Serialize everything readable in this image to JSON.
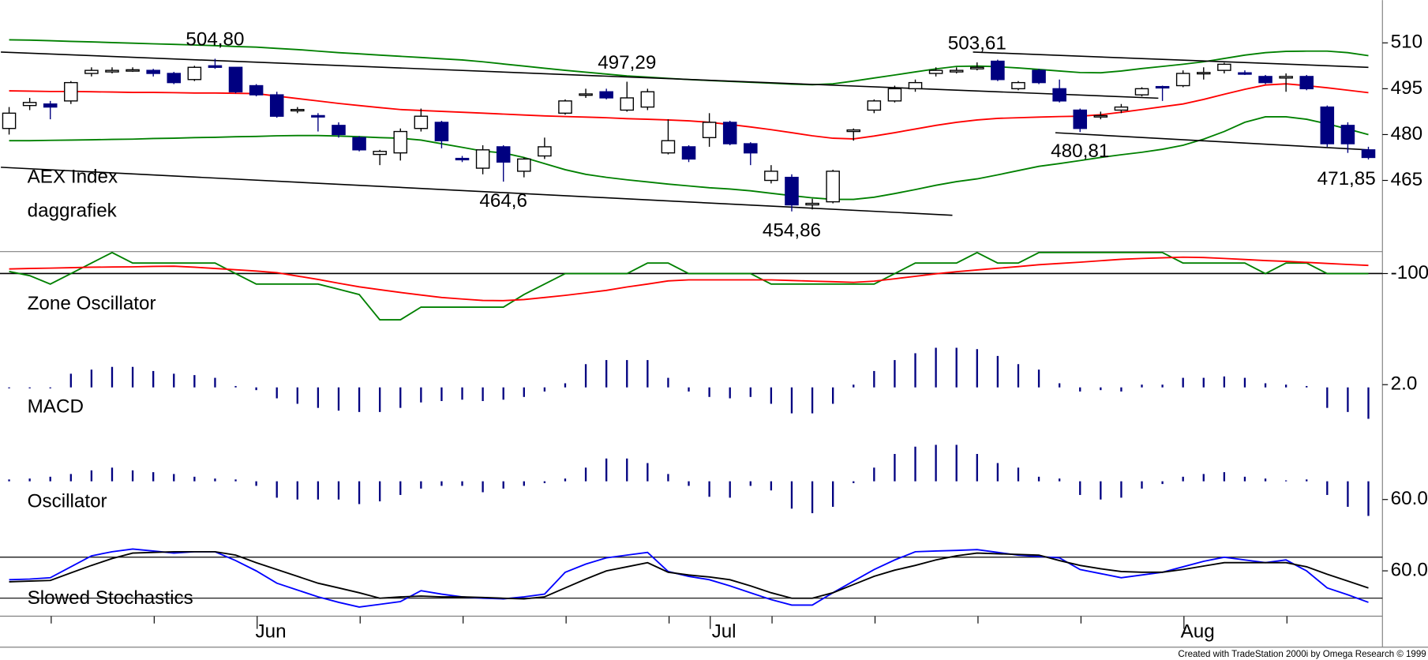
{
  "chart_data": [
    {
      "type": "candlestick",
      "title": "AEX Index",
      "subtitle": "daggrafiek",
      "categories": [
        null,
        null,
        null,
        null,
        null,
        null,
        null,
        null,
        null,
        null,
        null,
        null,
        "Jun",
        null,
        null,
        null,
        null,
        null,
        null,
        null,
        null,
        null,
        null,
        null,
        null,
        null,
        null,
        null,
        null,
        null,
        null,
        null,
        null,
        null,
        "Jul",
        null,
        null,
        null,
        null,
        null,
        null,
        null,
        null,
        null,
        null,
        null,
        null,
        null,
        null,
        null,
        null,
        null,
        null,
        null,
        null,
        null,
        null,
        "Aug",
        null,
        null,
        null,
        null,
        null,
        null,
        null,
        null,
        null
      ],
      "open": [
        482,
        489.5,
        490,
        491,
        500,
        500.5,
        501,
        501,
        500,
        498,
        502.5,
        502,
        496,
        493,
        487.8,
        486.2,
        483,
        479,
        473.5,
        474,
        482,
        484,
        472.2,
        469,
        476,
        468,
        473,
        487,
        493,
        494,
        488,
        489,
        474,
        476,
        479,
        484,
        477,
        465,
        466,
        457,
        458,
        481,
        488,
        491,
        495,
        500,
        500.5,
        501.5,
        504,
        495,
        501,
        495,
        488,
        485.8,
        488,
        493,
        495.7,
        496,
        500,
        501,
        500.2,
        499,
        498.5,
        499,
        489,
        483,
        475
      ],
      "high": [
        489,
        492,
        491,
        497.5,
        502,
        502,
        502,
        501.5,
        500.5,
        502.5,
        504.8,
        502,
        496.5,
        494,
        489,
        487,
        484,
        479.5,
        475,
        482,
        488.5,
        484.5,
        473,
        476.5,
        476.5,
        472.5,
        479,
        491.5,
        495,
        495,
        497.29,
        495,
        485,
        476.5,
        487,
        484.5,
        477.5,
        470,
        467,
        459,
        468.5,
        482,
        491.5,
        496,
        498,
        502,
        502,
        503.61,
        504.5,
        497.5,
        501.5,
        498,
        488.5,
        487.5,
        490,
        495.5,
        496,
        501,
        502,
        503.5,
        501,
        499.5,
        500,
        499.5,
        489.5,
        484,
        476
      ],
      "low": [
        480,
        488,
        485,
        490,
        499,
        500,
        500.5,
        499,
        496.5,
        497.5,
        501.5,
        493.5,
        492.5,
        485.5,
        487,
        481,
        479,
        474.5,
        470,
        471.5,
        481,
        475.5,
        471,
        467,
        464.6,
        466,
        472,
        486.5,
        492,
        491.5,
        487.5,
        488,
        473.5,
        471,
        476,
        476.5,
        470,
        464,
        454.86,
        455.5,
        457.5,
        478,
        487,
        490.5,
        494,
        499,
        500,
        501,
        497.5,
        494.5,
        496.5,
        490.5,
        480.81,
        485,
        487,
        492.5,
        491,
        495.5,
        498,
        500,
        499.5,
        496.5,
        494,
        494.5,
        476,
        474,
        471.85
      ],
      "close": [
        487,
        490.5,
        489,
        497,
        501,
        501,
        501.2,
        500,
        497,
        502,
        502,
        494,
        493,
        486,
        488.2,
        485.8,
        480,
        475,
        474.5,
        481,
        486,
        478,
        471.8,
        475,
        471,
        472,
        476,
        491,
        493.3,
        492,
        492,
        494,
        478,
        472,
        484,
        477,
        474,
        468,
        457,
        457.5,
        468,
        481.5,
        491,
        495,
        497,
        501,
        501,
        502,
        498,
        497,
        497,
        491,
        482,
        486.2,
        489,
        495,
        495.3,
        500,
        500.3,
        503,
        499.8,
        497,
        499,
        495,
        477,
        477,
        472.5
      ],
      "up_color": "#ffffff",
      "down_color": "#000080",
      "series": [
        {
          "color": "#008000",
          "values": [
            511,
            510.9,
            510.7,
            510.5,
            510.3,
            510.1,
            509.9,
            509.7,
            509.5,
            509.3,
            509.1,
            508.8,
            508.6,
            508.2,
            507.8,
            507.3,
            506.8,
            506.4,
            506,
            505.6,
            505.2,
            504.8,
            504.4,
            503.8,
            503.1,
            502.4,
            501.7,
            501,
            500.4,
            499.8,
            499.2,
            498.8,
            498.4,
            498,
            497.7,
            497.4,
            497.1,
            496.8,
            496.5,
            496.3,
            496.6,
            497.5,
            498.5,
            499.5,
            500.5,
            501.5,
            502.3,
            502.4,
            502.2,
            501.8,
            501.3,
            500.8,
            500.3,
            500.2,
            500.8,
            501.6,
            502.3,
            503,
            503.8,
            504.9,
            506,
            506.8,
            507.2,
            507.3,
            507.3,
            506.8,
            505.8
          ]
        },
        {
          "color": "#ff0000",
          "values": [
            494.3,
            494.2,
            494.1,
            494.1,
            494,
            493.9,
            493.8,
            493.8,
            493.7,
            493.6,
            493.6,
            493.5,
            493.4,
            492.6,
            491.8,
            491,
            490.2,
            489.5,
            488.8,
            488.2,
            487.9,
            487.6,
            487.3,
            487,
            486.7,
            486.4,
            486.1,
            485.9,
            485.7,
            485.5,
            485.2,
            485,
            484.8,
            484.5,
            484,
            483.3,
            482.5,
            481.6,
            480.6,
            479.6,
            478.8,
            478.6,
            479.5,
            480.6,
            481.8,
            483,
            484,
            484.8,
            485.3,
            485.5,
            485.7,
            485.9,
            486,
            486.5,
            487.3,
            488.2,
            489.1,
            490,
            491.5,
            493.2,
            494.8,
            496.2,
            496.6,
            496,
            495.3,
            494.5,
            493.7
          ]
        },
        {
          "color": "#008000",
          "values": [
            478,
            478,
            478.1,
            478.2,
            478.3,
            478.4,
            478.5,
            478.7,
            478.8,
            479,
            479.1,
            479.3,
            479.4,
            479.6,
            479.7,
            479.7,
            479.5,
            479.3,
            479,
            478.8,
            478.2,
            477,
            475.8,
            474.6,
            474,
            472.5,
            470.5,
            468.5,
            467,
            466,
            465.2,
            464.5,
            463.8,
            463.2,
            462.6,
            462.2,
            461.6,
            460.8,
            460,
            459.3,
            458.8,
            458.8,
            459.5,
            460.7,
            462,
            463.4,
            464.6,
            465.5,
            466.8,
            468.2,
            469.6,
            470.5,
            471.5,
            472.5,
            473.4,
            474.2,
            475.2,
            476.5,
            478.5,
            481,
            484,
            485.8,
            485.8,
            485,
            483.5,
            481.8,
            480
          ]
        }
      ],
      "trendlines": [
        {
          "x": [
            -0.4,
            55.8
          ],
          "y": [
            507,
            491.9
          ]
        },
        {
          "x": [
            46.8,
            66
          ],
          "y": [
            507,
            502
          ]
        },
        {
          "x": [
            -0.4,
            45.8
          ],
          "y": [
            469.3,
            453.6
          ]
        },
        {
          "x": [
            50.8,
            66
          ],
          "y": [
            480.6,
            475
          ]
        }
      ],
      "annotations": [
        {
          "label": "504,80",
          "index": 10,
          "value": 504.8
        },
        {
          "label": "497,29",
          "index": 30,
          "value": 497.29
        },
        {
          "label": "503,61",
          "index": 47,
          "value": 503.61
        },
        {
          "label": "464,6",
          "index": 24,
          "value": 464.6
        },
        {
          "label": "454,86",
          "index": 38,
          "value": 454.86
        },
        {
          "label": "480,81",
          "index": 52,
          "value": 480.81
        },
        {
          "label": "471,85",
          "index": 66,
          "value": 471.85
        }
      ],
      "ylim": [
        442,
        524
      ],
      "yticks": [
        465,
        480,
        495,
        510
      ]
    },
    {
      "type": "line",
      "title": "Zone Oscillator",
      "series": [
        {
          "color": "#008000",
          "values": [
            -90,
            -110,
            -150,
            -100,
            -50,
            0,
            -50,
            -50,
            -50,
            -50,
            -50,
            -100,
            -150,
            -150,
            -150,
            -150,
            -175,
            -200,
            -320,
            -320,
            -260,
            -260,
            -260,
            -260,
            -260,
            -200,
            -150,
            -100,
            -100,
            -100,
            -100,
            -50,
            -50,
            -100,
            -100,
            -100,
            -100,
            -150,
            -150,
            -150,
            -150,
            -150,
            -150,
            -100,
            -50,
            -50,
            -50,
            0,
            -50,
            -50,
            0,
            0,
            0,
            0,
            0,
            0,
            0,
            -50,
            -50,
            -50,
            -50,
            -100,
            -50,
            -50,
            -100,
            -100,
            -100
          ]
        },
        {
          "color": "#ff0000",
          "values": [
            -78,
            -76,
            -74,
            -72,
            -70,
            -69,
            -68,
            -66,
            -65,
            -70,
            -76,
            -82,
            -88,
            -96,
            -112,
            -128,
            -146,
            -163,
            -177,
            -190,
            -202,
            -214,
            -221,
            -228,
            -229,
            -224,
            -214,
            -204,
            -192,
            -180,
            -164,
            -150,
            -135,
            -130,
            -130,
            -130,
            -130,
            -130,
            -133,
            -136,
            -139,
            -142,
            -136,
            -125,
            -113,
            -101,
            -91,
            -83,
            -75,
            -67,
            -58,
            -52,
            -46,
            -39,
            -32,
            -28,
            -25,
            -22,
            -24,
            -28,
            -33,
            -38,
            -42,
            -47,
            -52,
            -57,
            -61
          ]
        }
      ],
      "ylim": [
        -360,
        0
      ],
      "yticks": [
        -100
      ],
      "grid": true
    },
    {
      "type": "bar",
      "title": "MACD",
      "color": "#000080",
      "values": [
        -0.7,
        -0.7,
        -0.7,
        10,
        13,
        15,
        15,
        12,
        10,
        9,
        7,
        1,
        -2,
        -8,
        -12,
        -15,
        -17,
        -18,
        -18,
        -15,
        -11,
        -10,
        -9,
        -10,
        -9,
        -7,
        -3,
        3,
        17,
        20,
        20,
        20,
        7,
        -3,
        -7,
        -8,
        -7,
        -12,
        -19,
        -19,
        -12,
        2,
        12,
        20,
        25,
        29,
        29,
        28,
        23,
        17,
        13,
        3,
        -3,
        -2,
        -3,
        2,
        2,
        7,
        7,
        8,
        7,
        3,
        2,
        1,
        -15,
        -18,
        -23
      ],
      "ylim": [
        -24.7,
        42
      ],
      "yticks": [
        {
          "value": 2,
          "label": "2.0"
        }
      ]
    },
    {
      "type": "bar",
      "title": "Oscillator",
      "color": "#000080",
      "baseline": 80,
      "values": [
        82,
        83,
        85,
        88,
        92,
        95,
        92,
        90,
        88,
        85,
        83,
        82,
        75,
        62,
        60,
        60,
        60,
        55,
        58,
        65,
        72,
        75,
        75,
        68,
        72,
        75,
        78,
        83,
        95,
        105,
        105,
        100,
        88,
        75,
        63,
        62,
        75,
        70,
        50,
        45,
        52,
        78,
        95,
        110,
        118,
        120,
        120,
        110,
        100,
        95,
        85,
        83,
        65,
        60,
        62,
        72,
        77,
        85,
        88,
        90,
        85,
        83,
        81,
        82,
        65,
        52,
        42
      ],
      "ylim": [
        38,
        144
      ],
      "yticks": [
        {
          "value": 60,
          "label": "60.0"
        }
      ]
    },
    {
      "type": "line",
      "title": "Slowed Stochastics",
      "series": [
        {
          "color": "#0000ff",
          "values": [
            47,
            48,
            50,
            66,
            82,
            88,
            92,
            89,
            86,
            88,
            88,
            75,
            60,
            42,
            32,
            22,
            14,
            7,
            11,
            15,
            31,
            26,
            22,
            20,
            19,
            22,
            26,
            58,
            70,
            79,
            83,
            87,
            59,
            52,
            47,
            38,
            28,
            18,
            10,
            10,
            28,
            45,
            62,
            76,
            88,
            89,
            90,
            91,
            87,
            83,
            81,
            79,
            62,
            56,
            50,
            54,
            58,
            66,
            74,
            80,
            76,
            72,
            76,
            60,
            35,
            25,
            14
          ]
        },
        {
          "color": "#000000",
          "values": [
            44,
            45,
            46,
            57,
            68,
            78,
            86,
            87,
            88,
            88,
            88,
            83,
            72,
            62,
            52,
            42,
            35,
            28,
            20,
            22,
            23,
            22,
            22,
            21,
            20,
            19,
            22,
            35,
            48,
            60,
            66,
            72,
            58,
            54,
            51,
            47,
            38,
            28,
            20,
            20,
            28,
            40,
            52,
            61,
            68,
            76,
            82,
            86,
            85,
            84,
            83,
            75,
            68,
            63,
            59,
            58,
            58,
            62,
            67,
            72,
            72,
            72,
            72,
            66,
            55,
            45,
            35
          ]
        }
      ],
      "levels": [
        20,
        80
      ],
      "ylim": [
        -5,
        130
      ],
      "yticks": [
        {
          "value": 60,
          "label": "60.0"
        }
      ]
    }
  ],
  "footer": "Created with TradeStation 2000i by Omega Research © 1999"
}
